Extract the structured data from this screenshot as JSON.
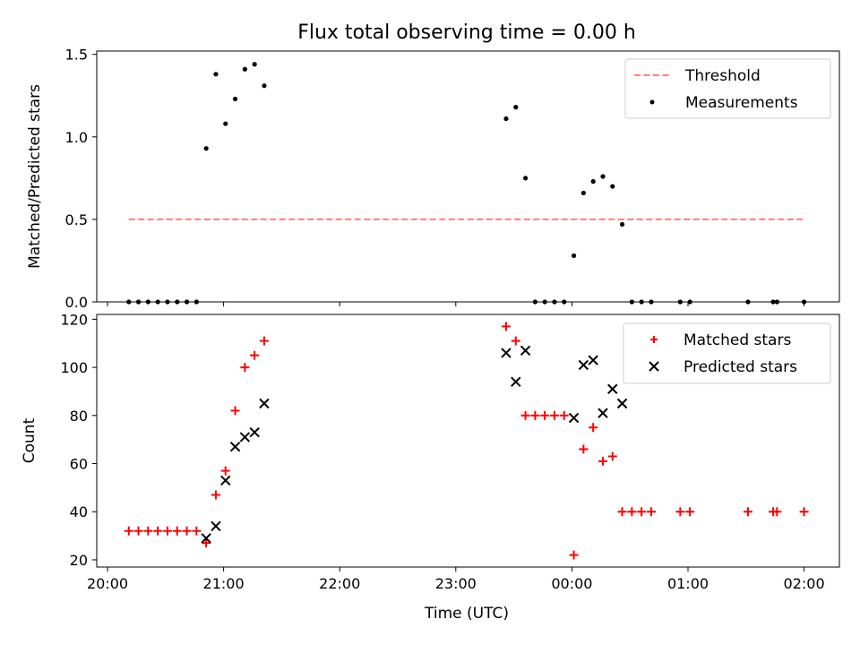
{
  "chart_data": [
    {
      "type": "scatter",
      "title": "Flux total observing time = 0.00 h",
      "xlabel": "",
      "ylabel": "Matched/Predicted stars",
      "xlim": [
        "19:56",
        "02:18"
      ],
      "ylim": [
        0,
        1.52
      ],
      "yticks": [
        "0.0",
        "0.5",
        "1.0",
        "1.5"
      ],
      "legend_position": "top-right",
      "series": [
        {
          "name": "Threshold",
          "kind": "line",
          "style": "dashed",
          "color": "#ff7f7f",
          "x": [
            "20:11",
            "02:00"
          ],
          "y": [
            0.5,
            0.5
          ]
        },
        {
          "name": "Measurements",
          "kind": "scatter",
          "marker": "dot",
          "color": "#000000",
          "x": [
            "20:11",
            "20:16",
            "20:21",
            "20:26",
            "20:31",
            "20:36",
            "20:41",
            "20:46",
            "20:51",
            "20:56",
            "21:01",
            "21:06",
            "21:11",
            "21:16",
            "21:21",
            "23:26",
            "23:31",
            "23:36",
            "23:41",
            "23:46",
            "23:51",
            "23:56",
            "00:01",
            "00:06",
            "00:11",
            "00:16",
            "00:21",
            "00:26",
            "00:31",
            "00:36",
            "00:41",
            "00:56",
            "01:01",
            "01:31",
            "01:44",
            "01:46",
            "02:00"
          ],
          "y": [
            0,
            0,
            0,
            0,
            0,
            0,
            0,
            0,
            0.93,
            1.38,
            1.08,
            1.23,
            1.41,
            1.44,
            1.31,
            1.11,
            1.18,
            0.75,
            0,
            0,
            0,
            0,
            0.28,
            0.66,
            0.73,
            0.76,
            0.7,
            0.47,
            0,
            0,
            0,
            0,
            0,
            0,
            0,
            0,
            0
          ]
        }
      ]
    },
    {
      "type": "scatter",
      "title": "",
      "xlabel": "Time (UTC)",
      "ylabel": "Count",
      "xlim": [
        "19:56",
        "02:18"
      ],
      "ylim": [
        17,
        122
      ],
      "yticks": [
        "20",
        "40",
        "60",
        "80",
        "100",
        "120"
      ],
      "xticks": [
        "20:00",
        "21:00",
        "22:00",
        "23:00",
        "00:00",
        "01:00",
        "02:00"
      ],
      "legend_position": "top-right",
      "series": [
        {
          "name": "Matched stars",
          "kind": "scatter",
          "marker": "plus",
          "color": "#ff0000",
          "x": [
            "20:11",
            "20:16",
            "20:21",
            "20:26",
            "20:31",
            "20:36",
            "20:41",
            "20:46",
            "20:51",
            "20:56",
            "21:01",
            "21:06",
            "21:11",
            "21:16",
            "21:21",
            "23:26",
            "23:31",
            "23:36",
            "23:41",
            "23:46",
            "23:51",
            "23:56",
            "00:01",
            "00:06",
            "00:11",
            "00:16",
            "00:21",
            "00:26",
            "00:31",
            "00:36",
            "00:41",
            "00:56",
            "01:01",
            "01:31",
            "01:44",
            "01:46",
            "02:00"
          ],
          "y": [
            32,
            32,
            32,
            32,
            32,
            32,
            32,
            32,
            27,
            47,
            57,
            82,
            100,
            105,
            111,
            117,
            111,
            80,
            80,
            80,
            80,
            80,
            22,
            66,
            75,
            61,
            63,
            40,
            40,
            40,
            40,
            40,
            40,
            40,
            40,
            40,
            40
          ]
        },
        {
          "name": "Predicted stars",
          "kind": "scatter",
          "marker": "x",
          "color": "#000000",
          "x": [
            "20:51",
            "20:56",
            "21:01",
            "21:06",
            "21:11",
            "21:16",
            "21:21",
            "23:26",
            "23:31",
            "23:36",
            "00:01",
            "00:06",
            "00:11",
            "00:16",
            "00:21",
            "00:26"
          ],
          "y": [
            29,
            34,
            53,
            67,
            71,
            73,
            85,
            106,
            94,
            107,
            79,
            101,
            103,
            81,
            91,
            85
          ]
        }
      ]
    }
  ]
}
